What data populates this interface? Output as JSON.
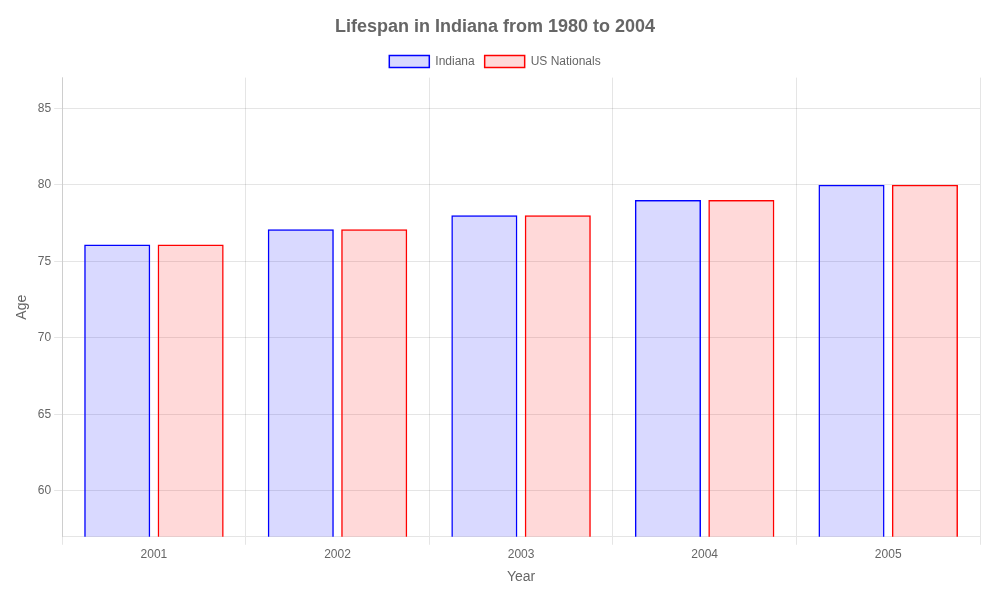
{
  "chart_data": {
    "type": "bar",
    "title": "Lifespan in Indiana from 1980 to 2004",
    "x_label": "Year",
    "y_label": "Age",
    "categories": [
      "2001",
      "2002",
      "2003",
      "2004",
      "2005"
    ],
    "series": [
      {
        "name": "Indiana",
        "color": "#0000ff",
        "values": [
          76.1,
          77.1,
          78.0,
          79.0,
          80.0
        ]
      },
      {
        "name": "US Nationals",
        "color": "#ff0000",
        "values": [
          76.1,
          77.1,
          78.0,
          79.0,
          80.0
        ]
      }
    ],
    "ylim": [
      57,
      87
    ],
    "yticks": [
      60,
      65,
      70,
      75,
      80,
      85
    ],
    "grid": true,
    "legend": "top"
  }
}
